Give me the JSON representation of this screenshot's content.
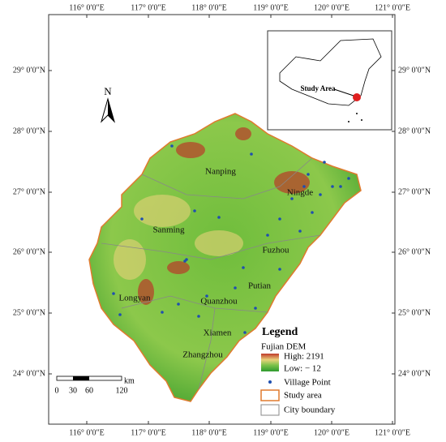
{
  "map": {
    "longitude_labels": [
      "116° 0′0″E",
      "117° 0′0″E",
      "118° 0′0″E",
      "119° 0′0″E",
      "120° 0′0″E",
      "121° 0′0″E"
    ],
    "latitude_labels": [
      "29° 0′0″N",
      "28° 0′0″N",
      "27° 0′0″N",
      "26° 0′0″N",
      "25° 0′0″N",
      "24° 0′0″N"
    ],
    "cities": [
      "Nanping",
      "Ningde",
      "Sanming",
      "Fuzhou",
      "Longyan",
      "Putian",
      "Quanzhou",
      "Xiamen",
      "Zhangzhou"
    ],
    "north": "N",
    "inset": {
      "label": "Study Area"
    },
    "scale_bar": {
      "unit": "km",
      "ticks": [
        "0",
        "30",
        "60",
        "120"
      ]
    },
    "legend": {
      "title": "Legend",
      "layer": "Fujian DEM",
      "high": "High: 2191",
      "low": "Low: − 12",
      "items": [
        "Village Point",
        "Study area",
        "City boundary"
      ]
    }
  }
}
